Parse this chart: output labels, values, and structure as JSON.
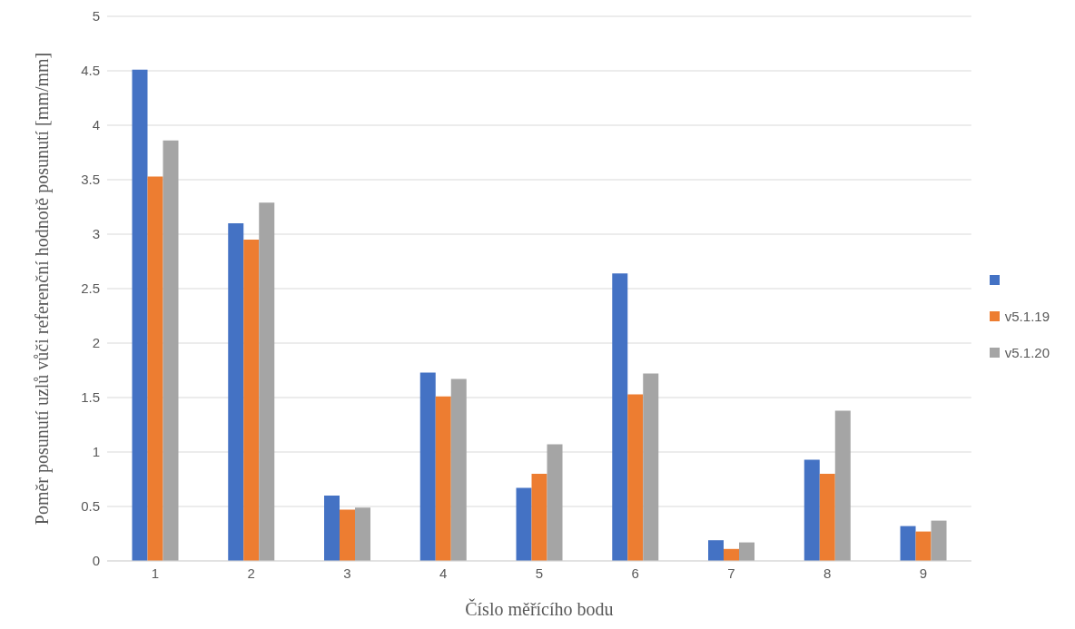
{
  "chart_data": {
    "type": "bar",
    "xlabel": "Číslo měřícího bodu",
    "ylabel": "Poměr posunutí uzlů vůči referenční hodnotě posunutí [mm/mm]",
    "categories": [
      "1",
      "2",
      "3",
      "4",
      "5",
      "6",
      "7",
      "8",
      "9"
    ],
    "series": [
      {
        "color": "#4472c4",
        "values": [
          4.51,
          3.1,
          0.6,
          1.73,
          0.67,
          2.64,
          0.19,
          0.93,
          0.32
        ]
      },
      {
        "name": "v5.1.19",
        "color": "#ed7d31",
        "values": [
          3.53,
          2.95,
          0.47,
          1.51,
          0.8,
          1.53,
          0.11,
          0.8,
          0.27
        ]
      },
      {
        "name": "v5.1.20",
        "color": "#a5a5a5",
        "values": [
          3.86,
          3.29,
          0.49,
          1.67,
          1.07,
          1.72,
          0.17,
          1.38,
          0.37
        ]
      }
    ],
    "ylim": [
      0,
      5
    ],
    "yticks": [
      0,
      0.5,
      1,
      1.5,
      2,
      2.5,
      3,
      3.5,
      4,
      4.5,
      5
    ],
    "grid": "y",
    "legend": "right"
  }
}
